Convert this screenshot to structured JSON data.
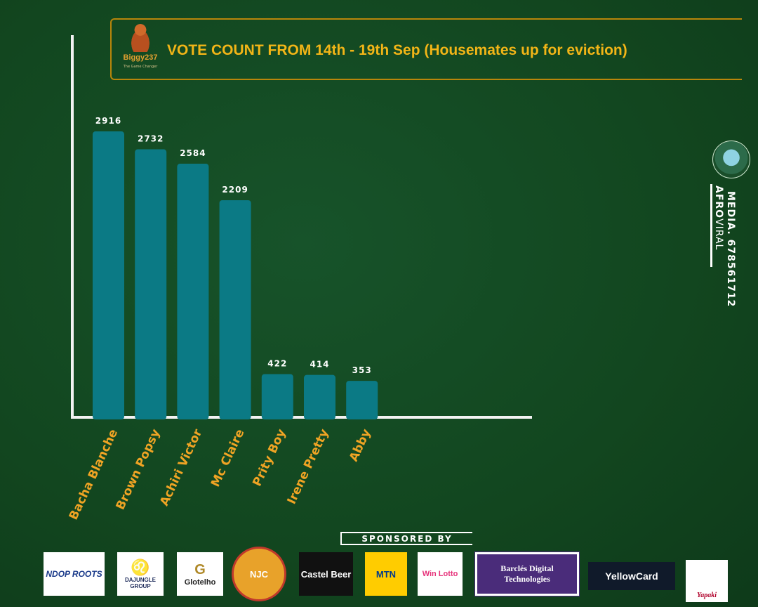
{
  "header": {
    "title": "VOTE COUNT FROM 14th - 19th Sep (Housemates up for eviction)",
    "logo_text": "Biggy237",
    "logo_tagline": "The Game Changer"
  },
  "chart_data": {
    "type": "bar",
    "title": "VOTE COUNT FROM 14th - 19th Sep (Housemates up for eviction)",
    "categories": [
      "Bacha Blanche",
      "Brown Popsy",
      "Achiri Victor",
      "Mc Claire",
      "Prity Boy",
      "Irene Pretty",
      "Abby"
    ],
    "values": [
      2916,
      2732,
      2584,
      2209,
      422,
      414,
      353
    ],
    "xlabel": "",
    "ylabel": "",
    "ylim": [
      0,
      3400
    ],
    "grid": false,
    "bar_color": "#0b7a85",
    "label_color": "#f0a424"
  },
  "watermark": {
    "name_bold": "AFRO",
    "name_thin": "VIRAL",
    "name_line2": "MEDIA.",
    "phone": "678561712"
  },
  "sponsors": {
    "heading": "SPONSORED BY",
    "items": [
      "NDOP ROOTS",
      "DAJUNGLE GROUP",
      "Glotelho",
      "NJC",
      "Castel Beer",
      "MTN",
      "Win Lotto",
      "Barclés Digital Technologies",
      "YellowCard",
      "Yapaki"
    ]
  }
}
